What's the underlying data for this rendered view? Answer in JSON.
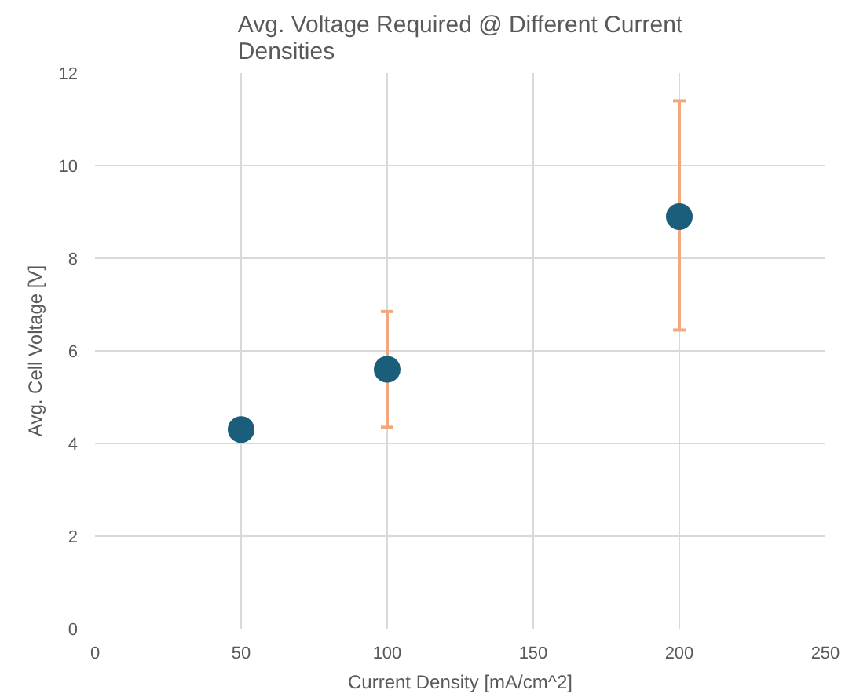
{
  "chart_data": {
    "type": "scatter",
    "title": "Avg. Voltage Required @ Different Current Densities",
    "xlabel": "Current Density [mA/cm^2]",
    "ylabel": "Avg. Cell Voltage [V]",
    "x": [
      50,
      100,
      200
    ],
    "series": [
      {
        "color": "#1b5e7b",
        "values": [
          4.3,
          5.6,
          8.9
        ],
        "errors": [
          null,
          [
            4.35,
            6.85
          ],
          [
            6.45,
            11.4
          ]
        ]
      }
    ],
    "xlim": [
      0,
      250
    ],
    "ylim": [
      0,
      12
    ],
    "xticks": [
      0,
      50,
      100,
      150,
      200,
      250
    ],
    "yticks": [
      0,
      2,
      4,
      6,
      8,
      10,
      12
    ],
    "grid": true,
    "marker": "circle"
  }
}
